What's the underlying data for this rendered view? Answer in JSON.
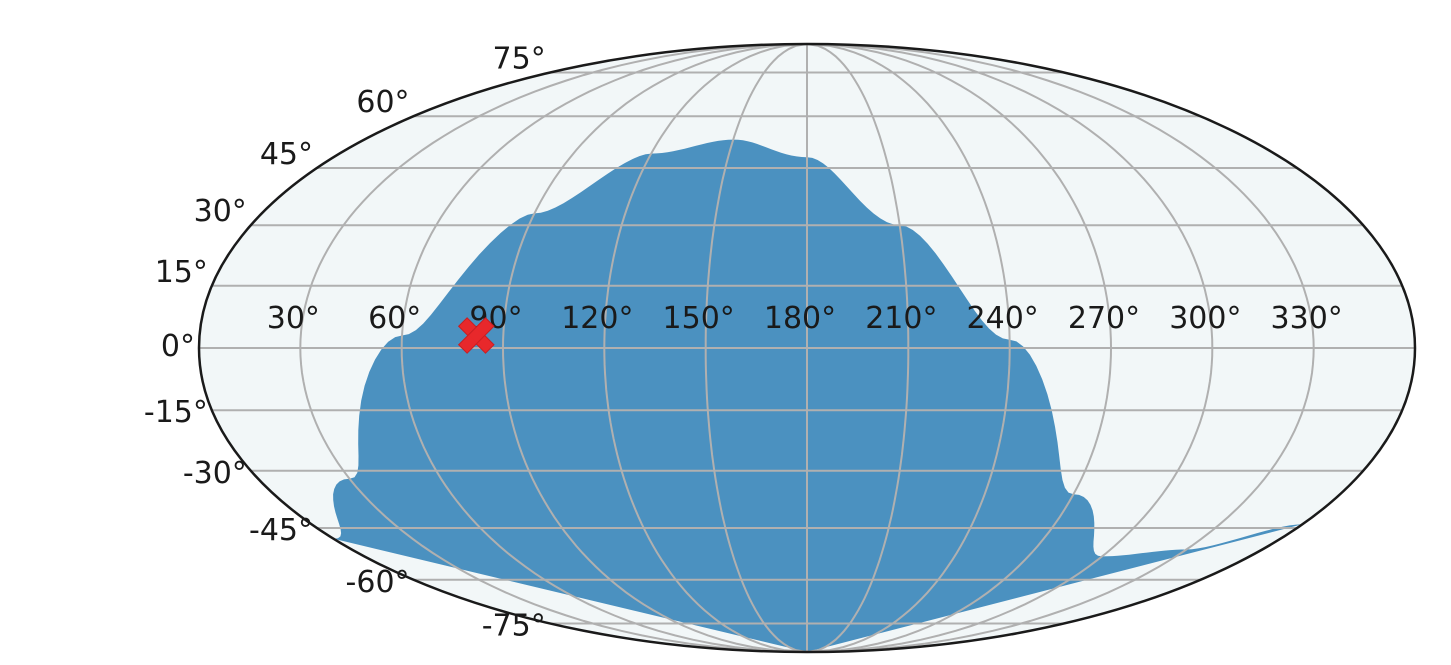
{
  "chart_data": {
    "type": "map-projection",
    "projection": "mollweide",
    "grid": true,
    "background_color": "#f2f7f8",
    "region_color": "#4b91c0",
    "marker_color": "#e8282b",
    "grid_color": "#b0b0b0",
    "longitude_ticks": [
      30,
      60,
      90,
      120,
      150,
      180,
      210,
      240,
      270,
      300,
      330
    ],
    "latitude_ticks": [
      -75,
      -60,
      -45,
      -30,
      -15,
      0,
      15,
      30,
      45,
      60,
      75
    ],
    "longitude_labels": [
      "30°",
      "60°",
      "90°",
      "120°",
      "150°",
      "180°",
      "210°",
      "240°",
      "270°",
      "300°",
      "330°"
    ],
    "latitude_labels": [
      "-75°",
      "-60°",
      "-45°",
      "-30°",
      "-15°",
      "0°",
      "15°",
      "30°",
      "45°",
      "60°",
      "75°"
    ],
    "shaded_region": {
      "description_boundary": [
        {
          "lon": 0,
          "lat": -48
        },
        {
          "lon": 30,
          "lat": -32
        },
        {
          "lon": 60,
          "lat": 3
        },
        {
          "lon": 90,
          "lat": 33
        },
        {
          "lon": 120,
          "lat": 49
        },
        {
          "lon": 150,
          "lat": 53
        },
        {
          "lon": 180,
          "lat": 48
        },
        {
          "lon": 210,
          "lat": 30
        },
        {
          "lon": 240,
          "lat": 2
        },
        {
          "lon": 270,
          "lat": -36
        },
        {
          "lon": 300,
          "lat": -53
        },
        {
          "lon": 330,
          "lat": -51
        },
        {
          "lon": 360,
          "lat": -44
        }
      ]
    },
    "marker": {
      "symbol": "X",
      "lon": 82,
      "lat": 3
    }
  }
}
